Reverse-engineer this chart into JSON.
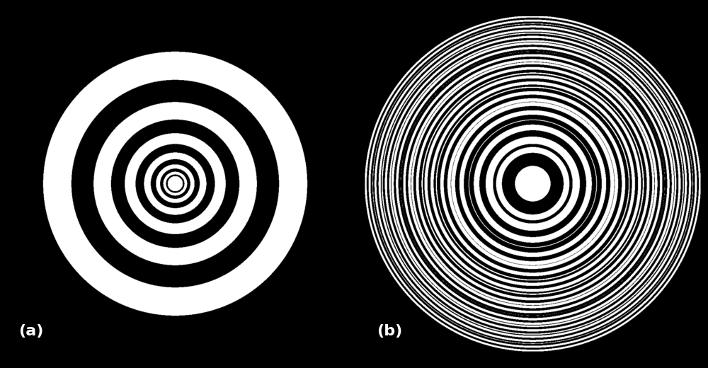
{
  "background_color": "#000000",
  "label_a": "(a)",
  "label_b": "(b)",
  "label_color": "#ffffff",
  "label_fontsize": 16,
  "label_fontweight": "bold",
  "fig_width": 10.0,
  "fig_height": 5.2,
  "resolution": 1000,
  "panel_a_scale": 18.0,
  "panel_b_scale_1": 55.0,
  "panel_b_scale_2": 34.0,
  "panel_b_use_superposition": true
}
